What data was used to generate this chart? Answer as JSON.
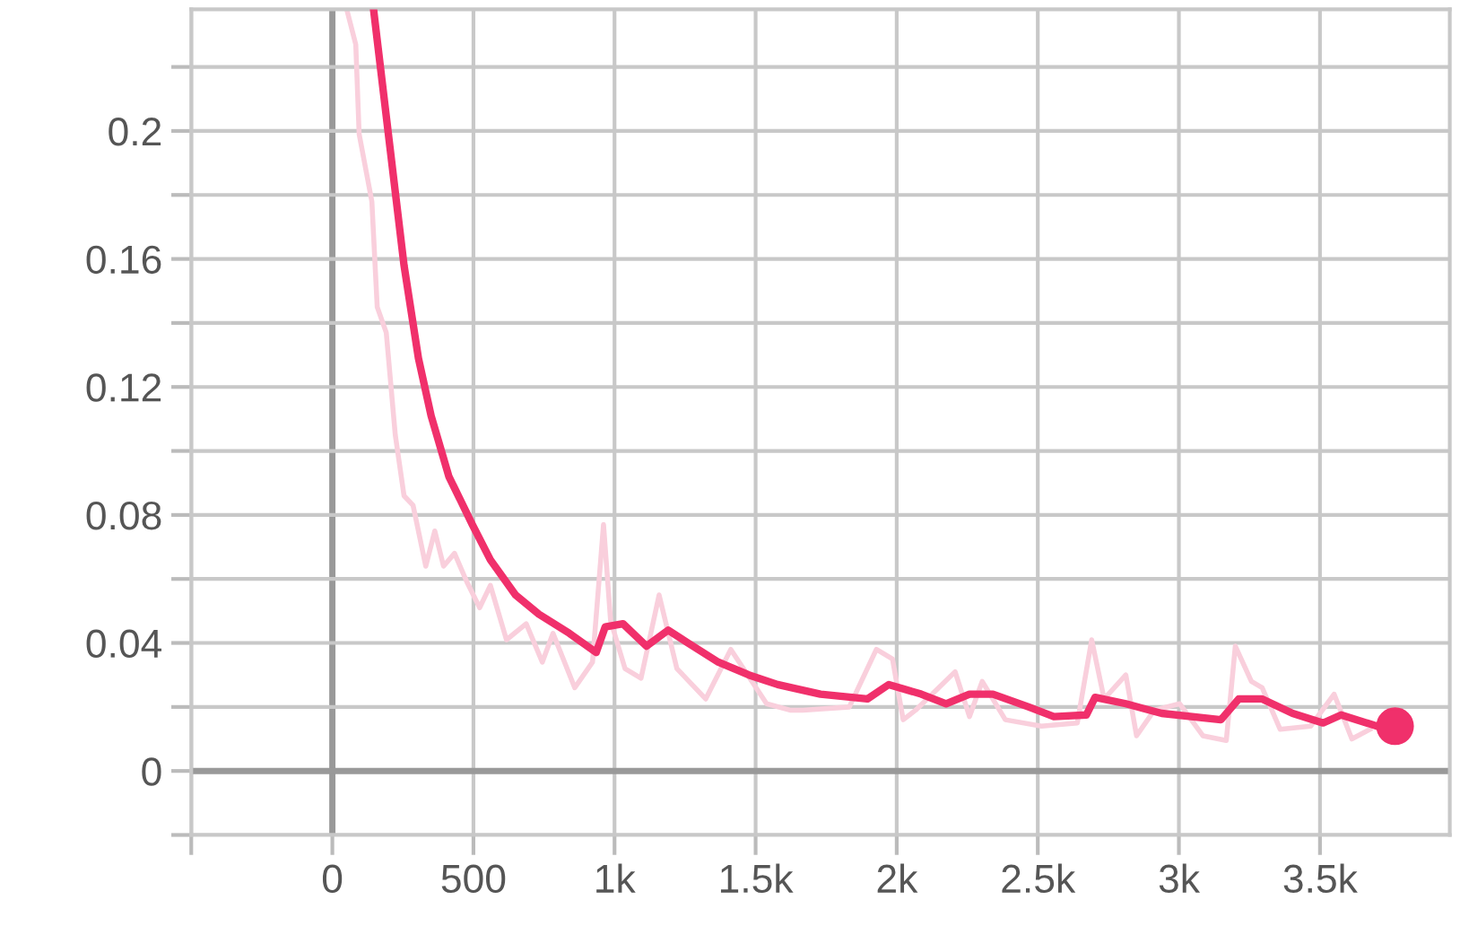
{
  "chart_data": {
    "type": "line",
    "xlim": [
      -500,
      3960
    ],
    "ylim": [
      -0.02,
      0.238
    ],
    "xticks": [
      {
        "value": -500,
        "label": null
      },
      0,
      500,
      {
        "value": 1000,
        "label": "1k"
      },
      {
        "value": 1500,
        "label": "1.5k"
      },
      {
        "value": 2000,
        "label": "2k"
      },
      {
        "value": 2500,
        "label": "2.5k"
      },
      {
        "value": 3000,
        "label": "3k"
      },
      {
        "value": 3500,
        "label": "3.5k"
      }
    ],
    "yticks": [
      {
        "value": -0.02,
        "label": null
      },
      0,
      {
        "value": 0.02,
        "label": null
      },
      0.04,
      {
        "value": 0.06,
        "label": null
      },
      0.08,
      {
        "value": 0.1,
        "label": null
      },
      0.12,
      {
        "value": 0.14,
        "label": null
      },
      0.16,
      {
        "value": 0.18,
        "label": null
      },
      0.2,
      {
        "value": 0.22,
        "label": null
      }
    ],
    "grid": true,
    "series": [
      {
        "color": "#f9cfdc",
        "x": [
          51,
          83,
          95,
          140,
          159,
          191,
          223,
          254,
          286,
          331,
          363,
          394,
          433,
          477,
          522,
          560,
          617,
          687,
          744,
          782,
          859,
          922,
          961,
          986,
          1037,
          1094,
          1158,
          1221,
          1323,
          1412,
          1539,
          1622,
          1667,
          1832,
          1928,
          1985,
          2023,
          2067,
          2207,
          2258,
          2303,
          2385,
          2513,
          2640,
          2691,
          2735,
          2812,
          2850,
          2913,
          3003,
          3085,
          3168,
          3200,
          3257,
          3295,
          3359,
          3467,
          3550,
          3613,
          3677
        ],
        "values": [
          0.238,
          0.227,
          0.199,
          0.178,
          0.145,
          0.137,
          0.105,
          0.086,
          0.083,
          0.064,
          0.075,
          0.064,
          0.068,
          0.059,
          0.051,
          0.058,
          0.041,
          0.046,
          0.034,
          0.043,
          0.026,
          0.034,
          0.077,
          0.047,
          0.032,
          0.029,
          0.055,
          0.032,
          0.0225,
          0.038,
          0.021,
          0.019,
          0.019,
          0.02,
          0.038,
          0.035,
          0.016,
          0.019,
          0.031,
          0.017,
          0.028,
          0.016,
          0.014,
          0.015,
          0.041,
          0.0225,
          0.03,
          0.011,
          0.019,
          0.021,
          0.011,
          0.0095,
          0.039,
          0.028,
          0.026,
          0.013,
          0.014,
          0.024,
          0.01,
          0.013
        ]
      },
      {
        "color": "#f0306b",
        "x": [
          146,
          204,
          254,
          305,
          350,
          413,
          496,
          560,
          649,
          732,
          840,
          935,
          967,
          1030,
          1113,
          1190,
          1260,
          1368,
          1476,
          1578,
          1730,
          1896,
          1972,
          2087,
          2175,
          2258,
          2341,
          2468,
          2557,
          2672,
          2703,
          2812,
          2939,
          3149,
          3212,
          3295,
          3403,
          3511,
          3575,
          3702,
          3766
        ],
        "values": [
          0.238,
          0.195,
          0.158,
          0.129,
          0.111,
          0.092,
          0.077,
          0.066,
          0.055,
          0.049,
          0.043,
          0.037,
          0.045,
          0.046,
          0.039,
          0.044,
          0.04,
          0.034,
          0.03,
          0.027,
          0.024,
          0.0225,
          0.027,
          0.024,
          0.021,
          0.024,
          0.024,
          0.02,
          0.017,
          0.0175,
          0.023,
          0.021,
          0.018,
          0.016,
          0.0225,
          0.0225,
          0.018,
          0.015,
          0.0175,
          0.014,
          0.014
        ]
      },
      {
        "type": "scatter",
        "color": "#f0306b",
        "marker": "circle",
        "x": [
          3766
        ],
        "values": [
          0.014
        ]
      }
    ]
  }
}
